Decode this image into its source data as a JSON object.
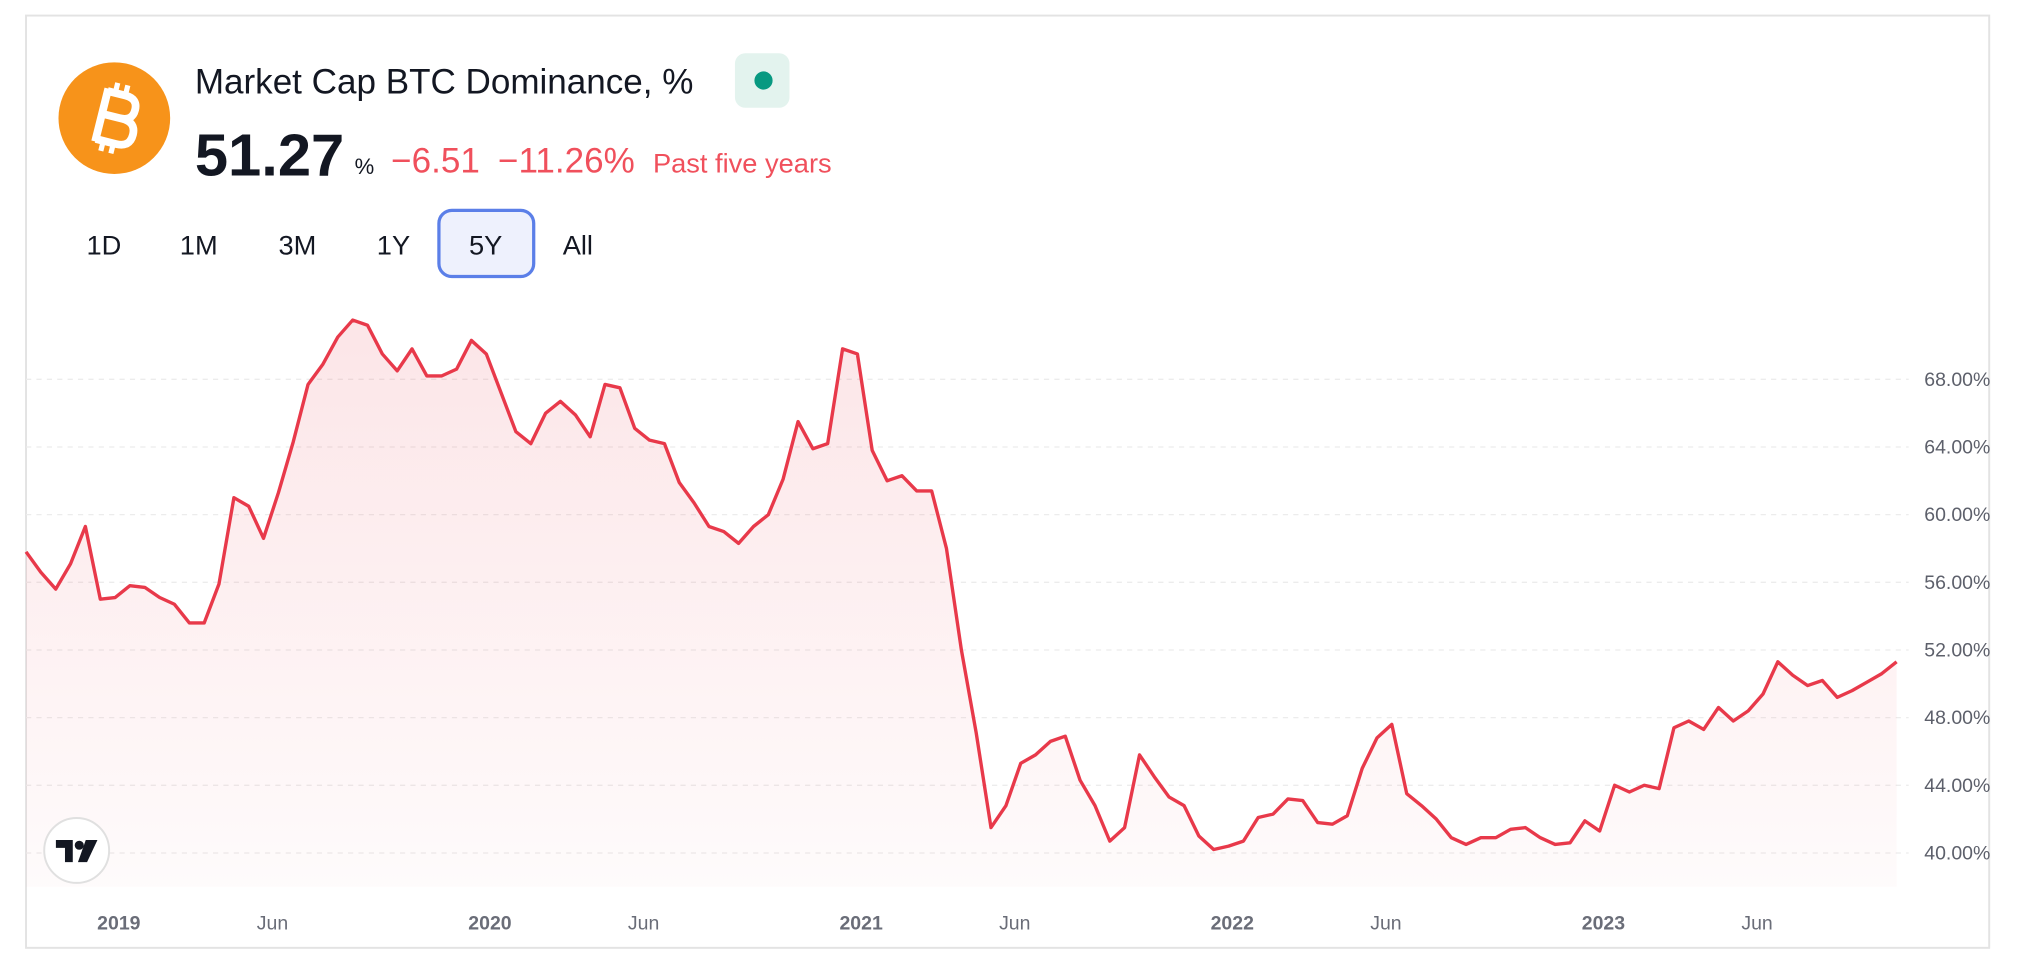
{
  "header": {
    "title": "Market Cap BTC Dominance, %",
    "price": "51.27",
    "unit": "%",
    "change": "−6.51",
    "change_percent": "−11.26%",
    "period": "Past five years"
  },
  "range_buttons": {
    "items": [
      "1D",
      "1M",
      "3M",
      "1Y",
      "5Y",
      "All"
    ],
    "active": "5Y"
  },
  "chart_data": {
    "type": "line",
    "color": "#e8394a",
    "x": [
      2018.75,
      2018.79,
      2018.83,
      2018.87,
      2018.91,
      2018.95,
      2018.99,
      2019.03,
      2019.07,
      2019.11,
      2019.15,
      2019.19,
      2019.23,
      2019.27,
      2019.31,
      2019.35,
      2019.39,
      2019.43,
      2019.47,
      2019.51,
      2019.55,
      2019.59,
      2019.63,
      2019.67,
      2019.71,
      2019.75,
      2019.79,
      2019.83,
      2019.87,
      2019.91,
      2019.95,
      2019.99,
      2020.03,
      2020.07,
      2020.11,
      2020.15,
      2020.19,
      2020.23,
      2020.27,
      2020.31,
      2020.35,
      2020.39,
      2020.43,
      2020.47,
      2020.51,
      2020.55,
      2020.59,
      2020.63,
      2020.67,
      2020.71,
      2020.75,
      2020.79,
      2020.83,
      2020.87,
      2020.91,
      2020.95,
      2020.99,
      2021.03,
      2021.07,
      2021.11,
      2021.15,
      2021.19,
      2021.23,
      2021.27,
      2021.31,
      2021.35,
      2021.39,
      2021.43,
      2021.47,
      2021.51,
      2021.55,
      2021.59,
      2021.63,
      2021.67,
      2021.71,
      2021.75,
      2021.79,
      2021.83,
      2021.87,
      2021.91,
      2021.95,
      2021.99,
      2022.03,
      2022.07,
      2022.11,
      2022.15,
      2022.19,
      2022.23,
      2022.27,
      2022.31,
      2022.35,
      2022.39,
      2022.43,
      2022.47,
      2022.51,
      2022.55,
      2022.59,
      2022.63,
      2022.67,
      2022.71,
      2022.75,
      2022.79,
      2022.83,
      2022.87,
      2022.91,
      2022.95,
      2022.99,
      2023.03,
      2023.07,
      2023.11,
      2023.15,
      2023.19,
      2023.23,
      2023.27,
      2023.31,
      2023.35,
      2023.39,
      2023.43,
      2023.47,
      2023.51,
      2023.55,
      2023.59,
      2023.63,
      2023.67,
      2023.71,
      2023.75,
      2023.79
    ],
    "values": [
      57.8,
      56.6,
      55.6,
      57.1,
      59.3,
      55.0,
      55.1,
      55.8,
      55.7,
      55.1,
      54.7,
      53.6,
      53.6,
      55.9,
      61.0,
      60.5,
      58.6,
      61.3,
      64.3,
      67.7,
      68.9,
      70.5,
      71.5,
      71.2,
      69.5,
      68.5,
      69.8,
      68.2,
      68.2,
      68.6,
      70.3,
      69.5,
      67.2,
      64.9,
      64.2,
      66.0,
      66.7,
      65.9,
      64.6,
      67.7,
      67.5,
      65.1,
      64.4,
      64.2,
      61.9,
      60.7,
      59.3,
      59.0,
      58.3,
      59.3,
      60.0,
      62.1,
      65.5,
      63.9,
      64.2,
      69.8,
      69.5,
      63.8,
      62.0,
      62.3,
      61.4,
      61.4,
      58.0,
      52.0,
      47.1,
      41.5,
      42.8,
      45.3,
      45.8,
      46.6,
      46.9,
      44.3,
      42.8,
      40.7,
      41.5,
      45.8,
      44.5,
      43.3,
      42.8,
      41.0,
      40.2,
      40.4,
      40.7,
      42.1,
      42.3,
      43.2,
      43.1,
      41.8,
      41.7,
      42.2,
      45.0,
      46.8,
      47.6,
      43.5,
      42.8,
      42.0,
      40.9,
      40.5,
      40.9,
      40.9,
      41.4,
      41.5,
      40.9,
      40.5,
      40.6,
      41.9,
      41.3,
      44.0,
      43.6,
      44.0,
      43.8,
      47.4,
      47.8,
      47.3,
      48.6,
      47.8,
      48.4,
      49.4,
      51.3,
      50.5,
      49.9,
      50.2,
      49.2,
      49.6,
      50.1,
      50.6,
      51.3
    ],
    "xlim": [
      2018.75,
      2023.875
    ],
    "xticks": [
      {
        "value": 2019,
        "label": "2019"
      },
      {
        "value": 2019.414,
        "label": "Jun"
      },
      {
        "value": 2020,
        "label": "2020"
      },
      {
        "value": 2020.414,
        "label": "Jun"
      },
      {
        "value": 2021,
        "label": "2021"
      },
      {
        "value": 2021.414,
        "label": "Jun"
      },
      {
        "value": 2022,
        "label": "2022"
      },
      {
        "value": 2022.414,
        "label": "Jun"
      },
      {
        "value": 2023,
        "label": "2023"
      },
      {
        "value": 2023.414,
        "label": "Jun"
      }
    ],
    "ylim": [
      38,
      73
    ],
    "yticks": [
      {
        "value": 40,
        "label": "40.00%"
      },
      {
        "value": 44,
        "label": "44.00%"
      },
      {
        "value": 48,
        "label": "48.00%"
      },
      {
        "value": 52,
        "label": "52.00%"
      },
      {
        "value": 56,
        "label": "56.00%"
      },
      {
        "value": 60,
        "label": "60.00%"
      },
      {
        "value": 64,
        "label": "64.00%"
      },
      {
        "value": 68,
        "label": "68.00%"
      }
    ],
    "grid": true
  }
}
